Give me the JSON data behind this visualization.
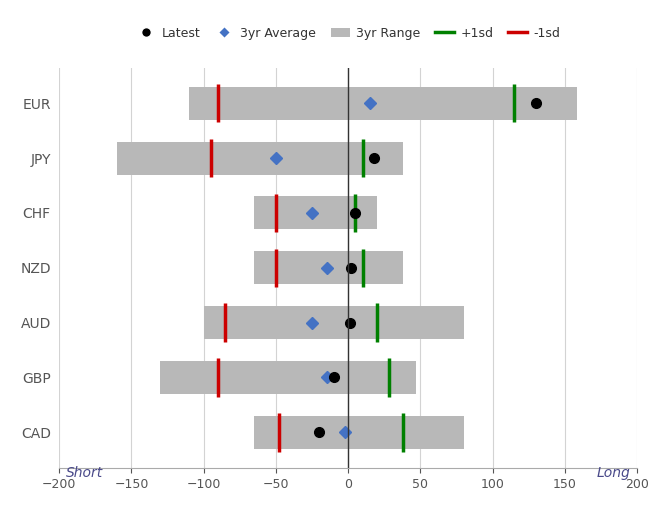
{
  "currencies": [
    "EUR",
    "JPY",
    "CHF",
    "NZD",
    "AUD",
    "GBP",
    "CAD"
  ],
  "range_min": [
    -110,
    -160,
    -65,
    -65,
    -100,
    -130,
    -65
  ],
  "range_max": [
    158,
    38,
    20,
    38,
    80,
    47,
    80
  ],
  "plus1sd": [
    115,
    10,
    5,
    10,
    20,
    28,
    38
  ],
  "minus1sd": [
    -90,
    -95,
    -50,
    -50,
    -85,
    -90,
    -48
  ],
  "avg3yr": [
    15,
    -50,
    -25,
    -15,
    -25,
    -15,
    -2
  ],
  "latest": [
    130,
    18,
    5,
    2,
    1,
    -10,
    -20
  ],
  "bar_color": "#b8b8b8",
  "plus1sd_color": "#008000",
  "minus1sd_color": "#cc0000",
  "avg_color": "#4472c4",
  "latest_color": "#000000",
  "xlim": [
    -200,
    200
  ],
  "xlabel_short": "Short",
  "xlabel_long": "Long",
  "background_color": "#ffffff",
  "grid_color": "#d3d3d3",
  "bar_height": 0.6,
  "figsize": [
    6.57,
    5.2
  ],
  "dpi": 100
}
